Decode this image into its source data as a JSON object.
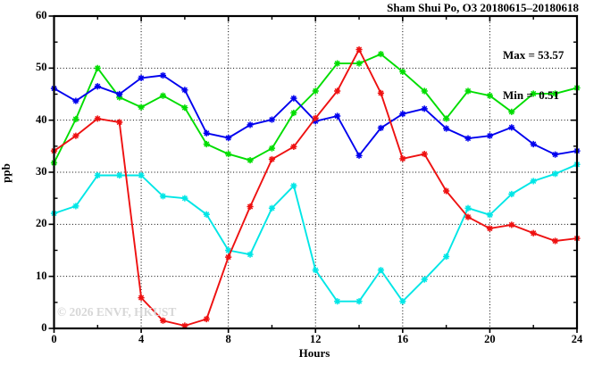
{
  "title": "Sham Shui Po, O3 20180615–20180618",
  "annotation": {
    "max_line": "Max = 53.57",
    "min_line": "Min =  0.51"
  },
  "watermark": "© 2026 ENVF, HKUST",
  "axes": {
    "ylabel": "ppb",
    "xlabel": "Hours"
  },
  "chart_data": {
    "type": "line",
    "title": "Sham Shui Po, O3 20180615–20180618",
    "xlabel": "Hours",
    "ylabel": "ppb",
    "xlim": [
      0,
      24
    ],
    "ylim": [
      0,
      60
    ],
    "x_major_ticks": [
      0,
      4,
      8,
      12,
      16,
      20,
      24
    ],
    "x_minor_ticks": [
      2,
      6,
      10,
      14,
      18,
      22
    ],
    "y_major_ticks": [
      0,
      10,
      20,
      30,
      40,
      50,
      60
    ],
    "y_minor_ticks": [
      5,
      15,
      25,
      35,
      45,
      55
    ],
    "grid": "dotted black at major ticks (horizontal 10-50, vertical 4-20)",
    "legend": "none",
    "max_annotation": 53.57,
    "min_annotation": 0.51,
    "x": [
      0,
      1,
      2,
      3,
      4,
      5,
      6,
      7,
      8,
      9,
      10,
      11,
      12,
      13,
      14,
      15,
      16,
      17,
      18,
      19,
      20,
      21,
      22,
      23,
      24
    ],
    "series": [
      {
        "name": "day-1-blue",
        "color": "#0000ee",
        "values": [
          46.1,
          43.7,
          46.5,
          45.0,
          48.1,
          48.6,
          45.8,
          37.5,
          36.6,
          39.1,
          40.1,
          44.2,
          39.8,
          40.8,
          33.2,
          38.5,
          41.2,
          42.2,
          38.4,
          36.5,
          37.0,
          38.6,
          35.4,
          33.4,
          34.1
        ]
      },
      {
        "name": "day-2-green",
        "color": "#00dd00",
        "values": [
          31.8,
          40.2,
          50.0,
          44.4,
          42.5,
          44.7,
          42.4,
          35.4,
          33.5,
          32.3,
          34.6,
          41.4,
          45.6,
          50.9,
          50.9,
          52.7,
          49.3,
          45.6,
          40.3,
          45.6,
          44.7,
          41.6,
          45.1,
          45.1,
          46.2
        ]
      },
      {
        "name": "day-3-red",
        "color": "#ee1111",
        "values": [
          34.1,
          37.0,
          40.3,
          39.6,
          5.9,
          1.5,
          0.51,
          1.8,
          13.7,
          23.4,
          32.5,
          34.9,
          40.4,
          45.6,
          53.57,
          45.2,
          32.6,
          33.5,
          26.4,
          21.4,
          19.2,
          19.9,
          18.3,
          16.8,
          17.3
        ]
      },
      {
        "name": "day-4-cyan",
        "color": "#00e6e6",
        "values": [
          22.1,
          23.5,
          29.4,
          29.4,
          29.4,
          25.4,
          25.0,
          21.9,
          15.0,
          14.2,
          23.1,
          27.4,
          11.2,
          5.2,
          5.2,
          11.2,
          5.2,
          9.4,
          13.8,
          23.1,
          21.8,
          25.8,
          28.3,
          29.7,
          31.5
        ]
      }
    ]
  }
}
